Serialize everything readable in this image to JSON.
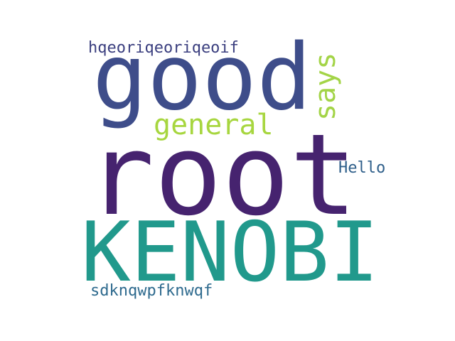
{
  "word_cloud": {
    "background": "#ffffff",
    "words": [
      {
        "key": "root",
        "text": "root",
        "color": "#46236f"
      },
      {
        "key": "kenobi",
        "text": "KENOBI",
        "color": "#21998c"
      },
      {
        "key": "good",
        "text": "good",
        "color": "#3e4d8a"
      },
      {
        "key": "general",
        "text": "general",
        "color": "#a7d63f"
      },
      {
        "key": "says",
        "text": "says",
        "color": "#a3d447"
      },
      {
        "key": "hqeo",
        "text": "hqeoriqeoriqeoif",
        "color": "#3b3f7f"
      },
      {
        "key": "hello",
        "text": "Hello",
        "color": "#2f5f8a"
      },
      {
        "key": "sdkn",
        "text": "sdknqwpfknwqf",
        "color": "#2e6a8e"
      }
    ]
  }
}
